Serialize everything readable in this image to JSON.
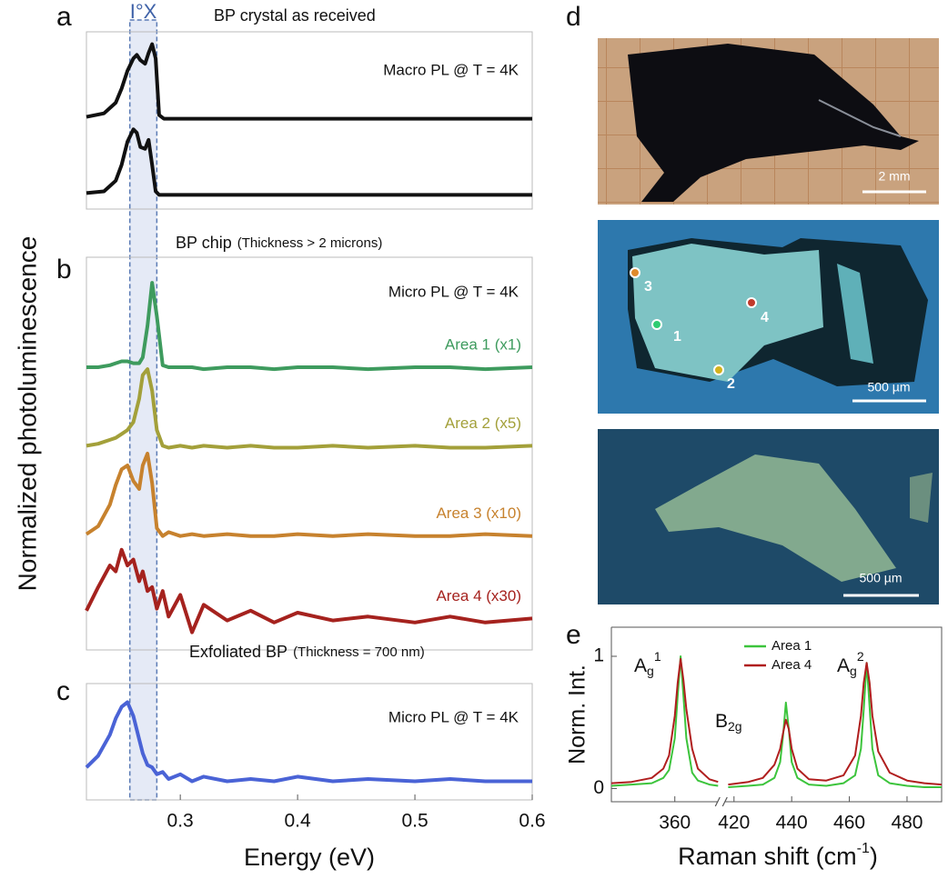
{
  "figure": {
    "ylabel": "Normalized photoluminescence",
    "band": {
      "label": "I°X",
      "range": [
        0.257,
        0.28
      ]
    }
  },
  "chart_data": [
    {
      "type": "line",
      "panel": "a",
      "title": "BP crystal as received",
      "annotation": "Macro PL @ T = 4K",
      "xlim": [
        0.22,
        0.6
      ],
      "ylim": [
        0,
        10
      ],
      "x": [
        0.22,
        0.235,
        0.245,
        0.25,
        0.255,
        0.26,
        0.263,
        0.266,
        0.27,
        0.273,
        0.276,
        0.279,
        0.282,
        0.286,
        0.3,
        0.4,
        0.5,
        0.6
      ],
      "series": [
        {
          "color": "#111111",
          "values": [
            5.2,
            5.4,
            6.0,
            6.8,
            7.8,
            8.5,
            8.7,
            8.4,
            8.2,
            8.8,
            9.3,
            8.5,
            5.3,
            5.1,
            5.1,
            5.1,
            5.1,
            5.1
          ]
        },
        {
          "color": "#111111",
          "values": [
            0.9,
            1.0,
            1.6,
            2.5,
            3.8,
            4.5,
            4.3,
            3.5,
            3.4,
            3.9,
            2.5,
            1.0,
            0.8,
            0.8,
            0.8,
            0.8,
            0.8,
            0.8
          ]
        }
      ]
    },
    {
      "type": "line",
      "panel": "b",
      "title": "BP chip",
      "subtitle": "(Thickness > 2 microns)",
      "annotation": "Micro PL @ T = 4K",
      "xlim": [
        0.22,
        0.6
      ],
      "ylim": [
        0,
        20
      ],
      "x": [
        0.22,
        0.23,
        0.24,
        0.245,
        0.25,
        0.255,
        0.26,
        0.265,
        0.268,
        0.272,
        0.276,
        0.28,
        0.285,
        0.29,
        0.3,
        0.31,
        0.32,
        0.34,
        0.36,
        0.38,
        0.4,
        0.43,
        0.46,
        0.5,
        0.53,
        0.56,
        0.6
      ],
      "series": [
        {
          "name": "Area 1 (x1)",
          "color": "#3e9b5e",
          "values": [
            14.4,
            14.4,
            14.5,
            14.6,
            14.7,
            14.7,
            14.6,
            14.6,
            14.9,
            16.5,
            18.7,
            17.0,
            14.5,
            14.4,
            14.4,
            14.4,
            14.3,
            14.4,
            14.4,
            14.3,
            14.4,
            14.4,
            14.3,
            14.4,
            14.4,
            14.3,
            14.4
          ]
        },
        {
          "name": "Area 2 (x5)",
          "color": "#a3a03a",
          "values": [
            10.4,
            10.5,
            10.7,
            10.8,
            11.0,
            11.2,
            11.6,
            12.8,
            14.0,
            14.3,
            13.2,
            11.2,
            10.4,
            10.3,
            10.4,
            10.3,
            10.4,
            10.3,
            10.4,
            10.3,
            10.3,
            10.4,
            10.3,
            10.4,
            10.3,
            10.3,
            10.4
          ]
        },
        {
          "name": "Area 3 (x10)",
          "color": "#c7822e",
          "values": [
            5.9,
            6.3,
            7.4,
            8.4,
            9.2,
            9.4,
            8.6,
            8.2,
            9.4,
            10.0,
            8.5,
            6.2,
            5.8,
            6.0,
            5.8,
            5.9,
            5.8,
            5.9,
            5.8,
            5.8,
            5.9,
            5.8,
            5.9,
            5.8,
            5.8,
            5.9,
            5.8
          ]
        },
        {
          "name": "Area 4 (x30)",
          "color": "#a5221e",
          "values": [
            2.0,
            3.2,
            4.3,
            4.0,
            5.1,
            4.3,
            4.6,
            3.5,
            4.0,
            3.0,
            3.2,
            2.1,
            3.0,
            1.7,
            2.8,
            0.9,
            2.3,
            1.5,
            2.0,
            1.4,
            1.9,
            1.5,
            1.7,
            1.4,
            1.7,
            1.4,
            1.6
          ]
        }
      ]
    },
    {
      "type": "line",
      "panel": "c",
      "title": "Exfoliated BP",
      "subtitle": "(Thickness = 700 nm)",
      "annotation": "Micro PL @ T = 4K",
      "xlabel": "Energy (eV)",
      "xlim": [
        0.22,
        0.6
      ],
      "xticks": [
        0.3,
        0.4,
        0.5,
        0.6
      ],
      "ylim": [
        0,
        5
      ],
      "x": [
        0.22,
        0.23,
        0.24,
        0.245,
        0.25,
        0.255,
        0.26,
        0.265,
        0.268,
        0.272,
        0.276,
        0.28,
        0.285,
        0.29,
        0.3,
        0.31,
        0.32,
        0.34,
        0.36,
        0.38,
        0.4,
        0.43,
        0.46,
        0.5,
        0.53,
        0.56,
        0.6
      ],
      "series": [
        {
          "color": "#4a63d6",
          "values": [
            1.4,
            1.9,
            2.8,
            3.5,
            4.0,
            4.2,
            3.6,
            2.6,
            2.0,
            1.5,
            1.4,
            1.1,
            1.2,
            0.9,
            1.1,
            0.8,
            1.0,
            0.8,
            0.9,
            0.8,
            1.0,
            0.8,
            0.9,
            0.8,
            0.9,
            0.8,
            0.8
          ]
        }
      ]
    },
    {
      "type": "line",
      "panel": "e",
      "ylabel": "Norm. Int.",
      "xlabel": {
        "text": "Raman shift (cm",
        "sup": "-1",
        "tail": ")"
      },
      "xlim": [
        338,
        492
      ],
      "xbreak": [
        375,
        417
      ],
      "xticks": [
        360,
        420,
        440,
        460,
        480
      ],
      "ylim": [
        -0.1,
        1.22
      ],
      "yticks": [
        0,
        1
      ],
      "legend": "top",
      "annotations": [
        {
          "text": "A",
          "sub": "g",
          "sup": "1"
        },
        {
          "text": "B",
          "sub": "2g"
        },
        {
          "text": "A",
          "sub": "g",
          "sup": "2"
        }
      ],
      "x": [
        338,
        345,
        352,
        356,
        358,
        360,
        361,
        362,
        363,
        364,
        366,
        368,
        372,
        375,
        396,
        418,
        425,
        430,
        434,
        436,
        437,
        438,
        439,
        440,
        442,
        446,
        452,
        458,
        462,
        464,
        465,
        466,
        467,
        468,
        470,
        474,
        480,
        486,
        492
      ],
      "series": [
        {
          "name": "Area 1",
          "color": "#3cc43c",
          "values": [
            0.02,
            0.03,
            0.04,
            0.08,
            0.14,
            0.38,
            0.7,
            1.0,
            0.7,
            0.38,
            0.12,
            0.06,
            0.03,
            0.02,
            null,
            0.01,
            0.02,
            0.03,
            0.08,
            0.2,
            0.4,
            0.65,
            0.45,
            0.2,
            0.08,
            0.03,
            0.02,
            0.04,
            0.1,
            0.3,
            0.6,
            0.95,
            0.62,
            0.3,
            0.1,
            0.04,
            0.02,
            0.01,
            0.01
          ]
        },
        {
          "name": "Area 4",
          "color": "#b01e1e",
          "values": [
            0.04,
            0.05,
            0.08,
            0.15,
            0.25,
            0.55,
            0.8,
            0.98,
            0.82,
            0.6,
            0.3,
            0.15,
            0.07,
            0.05,
            null,
            0.03,
            0.05,
            0.08,
            0.18,
            0.3,
            0.42,
            0.52,
            0.45,
            0.3,
            0.15,
            0.07,
            0.06,
            0.1,
            0.25,
            0.55,
            0.8,
            0.95,
            0.8,
            0.55,
            0.28,
            0.12,
            0.06,
            0.04,
            0.03
          ]
        }
      ]
    }
  ],
  "photos": {
    "panel": "d",
    "images": [
      {
        "scale_label": "2 mm"
      },
      {
        "scale_label": "500 µm",
        "spots": [
          "1",
          "2",
          "3",
          "4"
        ]
      },
      {
        "scale_label": "500 µm"
      }
    ]
  }
}
